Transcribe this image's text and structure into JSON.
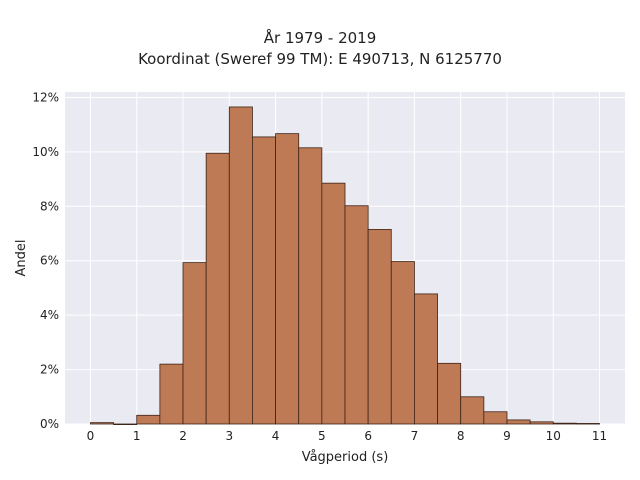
{
  "chart_data": {
    "type": "bar",
    "title_line1": "År 1979 - 2019",
    "title_line2": "Koordinat (Sweref 99 TM): E 490713, N 6125770",
    "xlabel": "Vågperiod (s)",
    "ylabel": "Andel",
    "bin_width": 0.5,
    "bin_starts": [
      0,
      0.5,
      1,
      1.5,
      2,
      2.5,
      3,
      3.5,
      4,
      4.5,
      5,
      5.5,
      6,
      6.5,
      7,
      7.5,
      8,
      8.5,
      9,
      9.5,
      10,
      10.5
    ],
    "values": [
      0.05,
      0,
      0.32,
      2.2,
      5.93,
      9.95,
      11.65,
      10.55,
      10.67,
      10.15,
      8.85,
      8.02,
      7.15,
      5.97,
      4.78,
      2.23,
      1.0,
      0.45,
      0.15,
      0.08,
      0.03,
      0.02
    ],
    "xlim": [
      -0.55,
      11.55
    ],
    "ylim": [
      0,
      12.2
    ],
    "xticks": [
      0,
      1,
      2,
      3,
      4,
      5,
      6,
      7,
      8,
      9,
      10,
      11
    ],
    "xtick_labels": [
      "0",
      "1",
      "2",
      "3",
      "4",
      "5",
      "6",
      "7",
      "8",
      "9",
      "10",
      "11"
    ],
    "yticks": [
      0,
      2,
      4,
      6,
      8,
      10,
      12
    ],
    "ytick_labels": [
      "0%",
      "2%",
      "4%",
      "6%",
      "8%",
      "10%",
      "12%"
    ],
    "grid": true,
    "colors": {
      "bar": "#be7a55",
      "edge": "#3d2418",
      "plot_bg": "#eaeaf2",
      "grid": "#ffffff"
    }
  }
}
